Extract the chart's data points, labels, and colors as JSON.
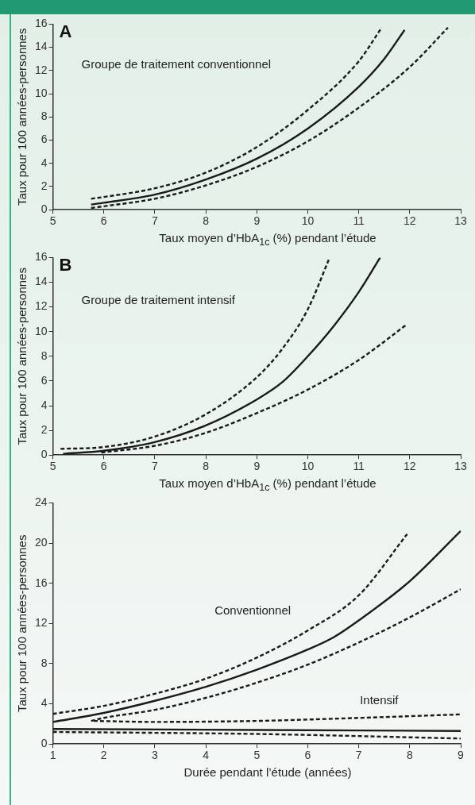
{
  "chart_data": [
    {
      "type": "line",
      "title": "A",
      "xlabel": "Taux moyen d’HbA$_{1c}$ (%) pendant l’étude",
      "ylabel": "Taux pour 100 années-personnes",
      "annotations": [
        "Groupe de traitement conventionnel"
      ],
      "xlim": [
        5,
        13
      ],
      "ylim": [
        0,
        16
      ],
      "xticks": [
        5,
        6,
        7,
        8,
        9,
        10,
        11,
        12,
        13
      ],
      "yticks": [
        0,
        2,
        4,
        6,
        8,
        10,
        12,
        14,
        16
      ],
      "series": [
        {
          "color": "#1a1a1a",
          "line_style": "solid",
          "x": [
            5.75,
            6,
            7,
            8,
            9,
            10,
            11,
            11.5,
            11.9
          ],
          "values": [
            0.45,
            0.6,
            1.3,
            2.6,
            4.4,
            7.0,
            10.6,
            13.0,
            15.5
          ]
        },
        {
          "color": "#1a1a1a",
          "line_style": "dashed",
          "x": [
            5.75,
            6,
            7,
            8,
            9,
            10,
            11,
            11.45
          ],
          "values": [
            0.95,
            1.1,
            1.85,
            3.2,
            5.4,
            8.6,
            12.8,
            15.7
          ]
        },
        {
          "color": "#1a1a1a",
          "line_style": "dashed",
          "x": [
            5.75,
            6,
            7,
            8,
            9,
            10,
            11,
            12,
            12.75
          ],
          "values": [
            0.15,
            0.3,
            0.95,
            2.1,
            3.7,
            5.9,
            8.8,
            12.3,
            15.7
          ]
        }
      ]
    },
    {
      "type": "line",
      "title": "B",
      "xlabel": "Taux moyen d’HbA$_{1c}$ (%) pendant l’étude",
      "ylabel": "Taux pour 100 années-personnes",
      "annotations": [
        "Groupe de traitement intensif"
      ],
      "xlim": [
        5,
        13
      ],
      "ylim": [
        0,
        16
      ],
      "xticks": [
        5,
        6,
        7,
        8,
        9,
        10,
        11,
        12,
        13
      ],
      "yticks": [
        0,
        2,
        4,
        6,
        8,
        10,
        12,
        14,
        16
      ],
      "series": [
        {
          "color": "#1a1a1a",
          "line_style": "solid",
          "x": [
            5.2,
            6,
            7,
            8,
            9,
            9.5,
            10,
            10.5,
            11,
            11.42
          ],
          "values": [
            0.1,
            0.35,
            1.05,
            2.4,
            4.5,
            5.9,
            8.0,
            10.4,
            13.2,
            16
          ]
        },
        {
          "color": "#1a1a1a",
          "line_style": "dashed",
          "x": [
            5.15,
            6,
            7,
            8,
            9,
            9.5,
            10,
            10.42
          ],
          "values": [
            0.5,
            0.65,
            1.5,
            3.3,
            6.3,
            8.6,
            11.8,
            15.9
          ]
        },
        {
          "color": "#1a1a1a",
          "line_style": "dashed",
          "x": [
            5.95,
            7,
            8,
            9,
            10,
            11,
            11.95
          ],
          "values": [
            0.2,
            0.75,
            1.8,
            3.4,
            5.3,
            7.7,
            10.6
          ]
        }
      ]
    },
    {
      "type": "line",
      "xlabel": "Durée pendant l’étude (années)",
      "ylabel": "Taux pour 100 années-personnes",
      "annotations": [
        "Conventionnel",
        "Intensif"
      ],
      "xlim": [
        1,
        9
      ],
      "ylim": [
        0,
        24
      ],
      "xticks": [
        1,
        2,
        3,
        4,
        5,
        6,
        7,
        8,
        9
      ],
      "yticks": [
        0,
        4,
        8,
        12,
        16,
        20,
        24
      ],
      "series": [
        {
          "color": "#1a1a1a",
          "line_style": "solid",
          "x": [
            1,
            2,
            3,
            4,
            5,
            6,
            6.5,
            7,
            8,
            9
          ],
          "values": [
            2.2,
            3.1,
            4.3,
            5.7,
            7.4,
            9.4,
            10.6,
            12.3,
            16.2,
            21.2
          ]
        },
        {
          "color": "#1a1a1a",
          "line_style": "dashed",
          "x": [
            1,
            2,
            3,
            4,
            5,
            6,
            7,
            7.95
          ],
          "values": [
            3.0,
            3.8,
            5.0,
            6.5,
            8.6,
            11.3,
            14.8,
            20.9
          ]
        },
        {
          "color": "#1a1a1a",
          "line_style": "dashed",
          "x": [
            1.75,
            2,
            3,
            4,
            5,
            6,
            7,
            8,
            9
          ],
          "values": [
            2.3,
            2.6,
            3.4,
            4.6,
            6.1,
            7.9,
            10.1,
            12.6,
            15.4
          ]
        },
        {
          "color": "#1a1a1a",
          "line_style": "solid",
          "x": [
            1,
            5,
            9
          ],
          "values": [
            1.5,
            1.4,
            1.3
          ]
        },
        {
          "color": "#1a1a1a",
          "line_style": "dashed",
          "x": [
            1.8,
            3,
            5,
            7,
            9
          ],
          "values": [
            2.3,
            2.2,
            2.3,
            2.6,
            2.95
          ]
        },
        {
          "color": "#1a1a1a",
          "line_style": "dashed",
          "x": [
            1,
            5,
            9
          ],
          "values": [
            1.2,
            1.0,
            0.55
          ]
        }
      ]
    }
  ]
}
